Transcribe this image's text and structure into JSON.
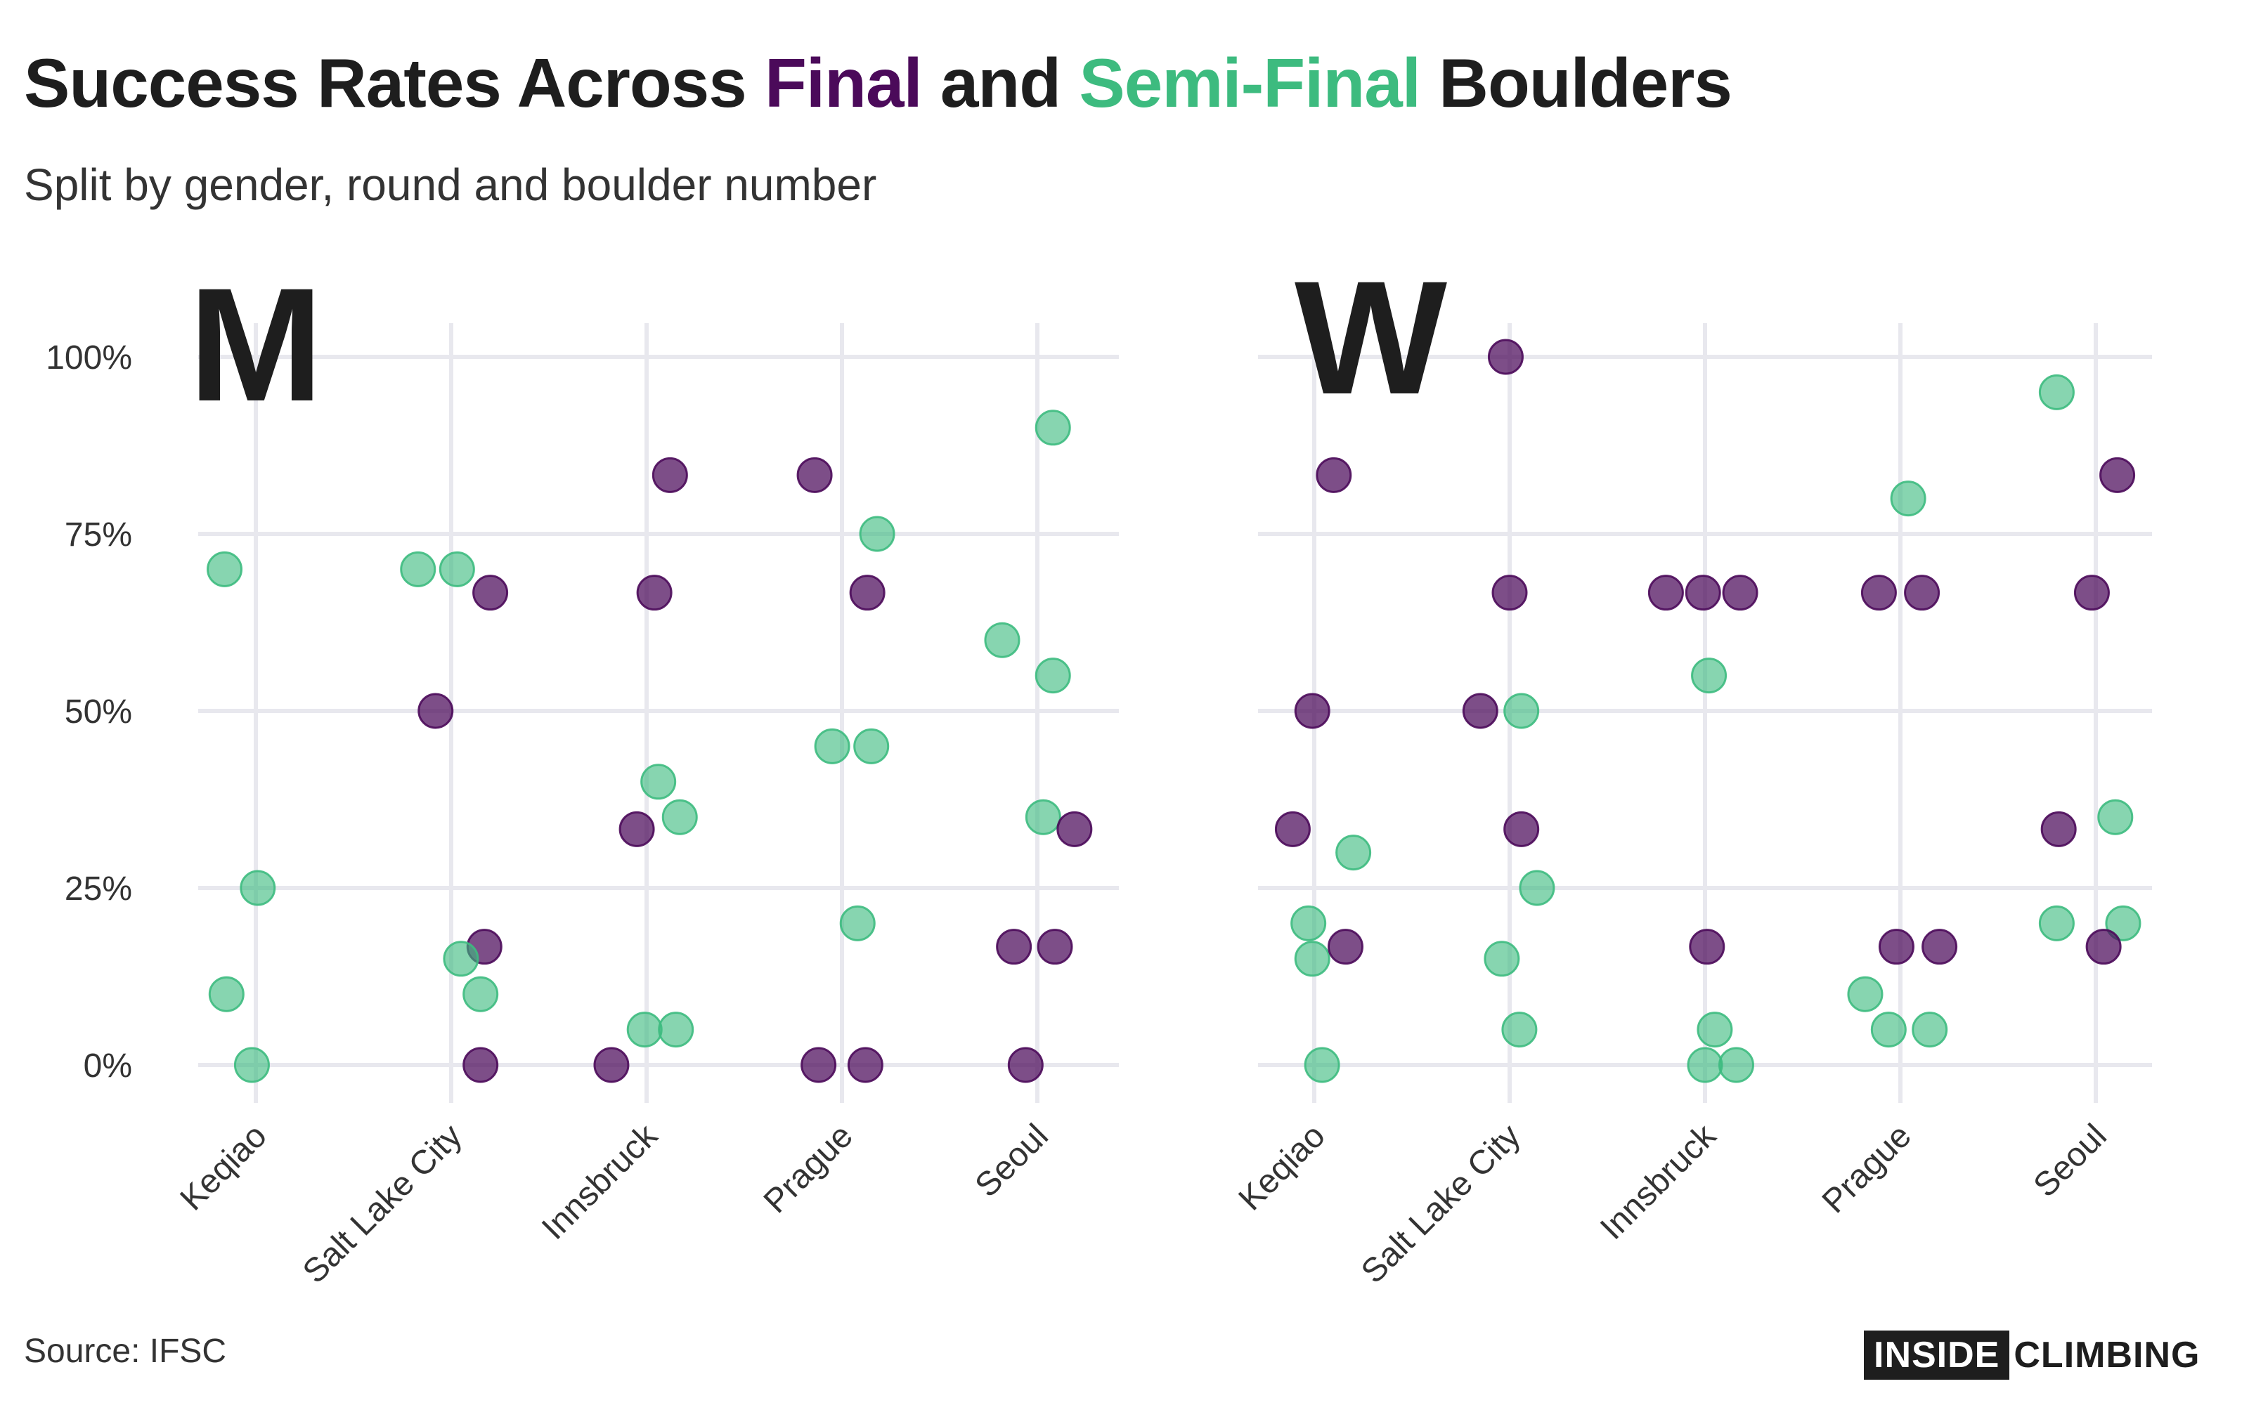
{
  "header": {
    "title_prefix": "Success Rates Across ",
    "title_final": "Final",
    "title_and": " and ",
    "title_semifinal": "Semi-Final",
    "title_suffix": " Boulders",
    "subtitle": "Split by gender, round and boulder number"
  },
  "footer": {
    "source": "Source: IFSC",
    "brand_box": "INSIDE",
    "brand_rest": "CLIMBING"
  },
  "colors": {
    "final": "#4b0a5a",
    "semi_final": "#3dbb7f",
    "grid": "#e8e8ee",
    "text": "#1e1e1e"
  },
  "chart_data": {
    "type": "scatter",
    "categories": [
      "Keqiao",
      "Salt Lake City",
      "Innsbruck",
      "Prague",
      "Seoul"
    ],
    "ylim": [
      0,
      100
    ],
    "yticks": [
      "0%",
      "25%",
      "50%",
      "75%",
      "100%"
    ],
    "grid": true,
    "series_names": [
      "Final",
      "Semi-Final"
    ],
    "panels": [
      {
        "label": "M",
        "points": [
          {
            "cat": "Keqiao",
            "jitter": -0.16,
            "y": 70,
            "series": "Semi-Final"
          },
          {
            "cat": "Keqiao",
            "jitter": 0.01,
            "y": 25,
            "series": "Semi-Final"
          },
          {
            "cat": "Keqiao",
            "jitter": -0.15,
            "y": 10,
            "series": "Semi-Final"
          },
          {
            "cat": "Keqiao",
            "jitter": -0.02,
            "y": 0,
            "series": "Semi-Final"
          },
          {
            "cat": "Salt Lake City",
            "jitter": -0.17,
            "y": 70,
            "series": "Semi-Final"
          },
          {
            "cat": "Salt Lake City",
            "jitter": 0.03,
            "y": 70,
            "series": "Semi-Final"
          },
          {
            "cat": "Salt Lake City",
            "jitter": 0.2,
            "y": 66.7,
            "series": "Final"
          },
          {
            "cat": "Salt Lake City",
            "jitter": -0.08,
            "y": 50,
            "series": "Final"
          },
          {
            "cat": "Salt Lake City",
            "jitter": 0.17,
            "y": 16.7,
            "series": "Final"
          },
          {
            "cat": "Salt Lake City",
            "jitter": 0.05,
            "y": 15,
            "series": "Semi-Final"
          },
          {
            "cat": "Salt Lake City",
            "jitter": 0.15,
            "y": 10,
            "series": "Semi-Final"
          },
          {
            "cat": "Salt Lake City",
            "jitter": 0.15,
            "y": 0,
            "series": "Final"
          },
          {
            "cat": "Innsbruck",
            "jitter": 0.12,
            "y": 83.3,
            "series": "Final"
          },
          {
            "cat": "Innsbruck",
            "jitter": 0.04,
            "y": 66.7,
            "series": "Final"
          },
          {
            "cat": "Innsbruck",
            "jitter": 0.06,
            "y": 40,
            "series": "Semi-Final"
          },
          {
            "cat": "Innsbruck",
            "jitter": 0.17,
            "y": 35,
            "series": "Semi-Final"
          },
          {
            "cat": "Innsbruck",
            "jitter": -0.05,
            "y": 33.3,
            "series": "Final"
          },
          {
            "cat": "Innsbruck",
            "jitter": -0.01,
            "y": 5,
            "series": "Semi-Final"
          },
          {
            "cat": "Innsbruck",
            "jitter": 0.15,
            "y": 5,
            "series": "Semi-Final"
          },
          {
            "cat": "Innsbruck",
            "jitter": -0.18,
            "y": 0,
            "series": "Final"
          },
          {
            "cat": "Prague",
            "jitter": -0.14,
            "y": 83.3,
            "series": "Final"
          },
          {
            "cat": "Prague",
            "jitter": 0.18,
            "y": 75,
            "series": "Semi-Final"
          },
          {
            "cat": "Prague",
            "jitter": 0.13,
            "y": 66.7,
            "series": "Final"
          },
          {
            "cat": "Prague",
            "jitter": -0.05,
            "y": 45,
            "series": "Semi-Final"
          },
          {
            "cat": "Prague",
            "jitter": 0.15,
            "y": 45,
            "series": "Semi-Final"
          },
          {
            "cat": "Prague",
            "jitter": 0.08,
            "y": 20,
            "series": "Semi-Final"
          },
          {
            "cat": "Prague",
            "jitter": -0.12,
            "y": 0,
            "series": "Final"
          },
          {
            "cat": "Prague",
            "jitter": 0.12,
            "y": 0,
            "series": "Final"
          },
          {
            "cat": "Seoul",
            "jitter": 0.08,
            "y": 90,
            "series": "Semi-Final"
          },
          {
            "cat": "Seoul",
            "jitter": -0.18,
            "y": 60,
            "series": "Semi-Final"
          },
          {
            "cat": "Seoul",
            "jitter": 0.08,
            "y": 55,
            "series": "Semi-Final"
          },
          {
            "cat": "Seoul",
            "jitter": 0.03,
            "y": 35,
            "series": "Semi-Final"
          },
          {
            "cat": "Seoul",
            "jitter": 0.19,
            "y": 33.3,
            "series": "Final"
          },
          {
            "cat": "Seoul",
            "jitter": -0.12,
            "y": 16.7,
            "series": "Final"
          },
          {
            "cat": "Seoul",
            "jitter": 0.09,
            "y": 16.7,
            "series": "Final"
          },
          {
            "cat": "Seoul",
            "jitter": -0.06,
            "y": 0,
            "series": "Final"
          }
        ]
      },
      {
        "label": "W",
        "points": [
          {
            "cat": "Keqiao",
            "jitter": 0.1,
            "y": 83.3,
            "series": "Final"
          },
          {
            "cat": "Keqiao",
            "jitter": -0.01,
            "y": 50,
            "series": "Final"
          },
          {
            "cat": "Keqiao",
            "jitter": -0.11,
            "y": 33.3,
            "series": "Final"
          },
          {
            "cat": "Keqiao",
            "jitter": 0.2,
            "y": 30,
            "series": "Semi-Final"
          },
          {
            "cat": "Keqiao",
            "jitter": -0.03,
            "y": 20,
            "series": "Semi-Final"
          },
          {
            "cat": "Keqiao",
            "jitter": -0.01,
            "y": 15,
            "series": "Semi-Final"
          },
          {
            "cat": "Keqiao",
            "jitter": 0.16,
            "y": 16.7,
            "series": "Final"
          },
          {
            "cat": "Keqiao",
            "jitter": 0.04,
            "y": 0,
            "series": "Semi-Final"
          },
          {
            "cat": "Salt Lake City",
            "jitter": -0.02,
            "y": 100,
            "series": "Final"
          },
          {
            "cat": "Salt Lake City",
            "jitter": 0.0,
            "y": 66.7,
            "series": "Final"
          },
          {
            "cat": "Salt Lake City",
            "jitter": -0.15,
            "y": 50,
            "series": "Final"
          },
          {
            "cat": "Salt Lake City",
            "jitter": 0.06,
            "y": 50,
            "series": "Semi-Final"
          },
          {
            "cat": "Salt Lake City",
            "jitter": 0.06,
            "y": 33.3,
            "series": "Final"
          },
          {
            "cat": "Salt Lake City",
            "jitter": 0.14,
            "y": 25,
            "series": "Semi-Final"
          },
          {
            "cat": "Salt Lake City",
            "jitter": -0.04,
            "y": 15,
            "series": "Semi-Final"
          },
          {
            "cat": "Salt Lake City",
            "jitter": 0.05,
            "y": 5,
            "series": "Semi-Final"
          },
          {
            "cat": "Innsbruck",
            "jitter": -0.2,
            "y": 66.7,
            "series": "Final"
          },
          {
            "cat": "Innsbruck",
            "jitter": -0.01,
            "y": 66.7,
            "series": "Final"
          },
          {
            "cat": "Innsbruck",
            "jitter": 0.18,
            "y": 66.7,
            "series": "Final"
          },
          {
            "cat": "Innsbruck",
            "jitter": 0.02,
            "y": 55,
            "series": "Semi-Final"
          },
          {
            "cat": "Innsbruck",
            "jitter": 0.01,
            "y": 16.7,
            "series": "Final"
          },
          {
            "cat": "Innsbruck",
            "jitter": 0.05,
            "y": 5,
            "series": "Semi-Final"
          },
          {
            "cat": "Innsbruck",
            "jitter": 0.0,
            "y": 0,
            "series": "Semi-Final"
          },
          {
            "cat": "Innsbruck",
            "jitter": 0.16,
            "y": 0,
            "series": "Semi-Final"
          },
          {
            "cat": "Prague",
            "jitter": 0.04,
            "y": 80,
            "series": "Semi-Final"
          },
          {
            "cat": "Prague",
            "jitter": -0.11,
            "y": 66.7,
            "series": "Final"
          },
          {
            "cat": "Prague",
            "jitter": 0.11,
            "y": 66.7,
            "series": "Final"
          },
          {
            "cat": "Prague",
            "jitter": -0.02,
            "y": 16.7,
            "series": "Final"
          },
          {
            "cat": "Prague",
            "jitter": 0.2,
            "y": 16.7,
            "series": "Final"
          },
          {
            "cat": "Prague",
            "jitter": -0.18,
            "y": 10,
            "series": "Semi-Final"
          },
          {
            "cat": "Prague",
            "jitter": -0.06,
            "y": 5,
            "series": "Semi-Final"
          },
          {
            "cat": "Prague",
            "jitter": 0.15,
            "y": 5,
            "series": "Semi-Final"
          },
          {
            "cat": "Seoul",
            "jitter": -0.2,
            "y": 95,
            "series": "Semi-Final"
          },
          {
            "cat": "Seoul",
            "jitter": 0.11,
            "y": 83.3,
            "series": "Final"
          },
          {
            "cat": "Seoul",
            "jitter": -0.02,
            "y": 66.7,
            "series": "Final"
          },
          {
            "cat": "Seoul",
            "jitter": -0.19,
            "y": 33.3,
            "series": "Final"
          },
          {
            "cat": "Seoul",
            "jitter": 0.1,
            "y": 35,
            "series": "Semi-Final"
          },
          {
            "cat": "Seoul",
            "jitter": -0.2,
            "y": 20,
            "series": "Semi-Final"
          },
          {
            "cat": "Seoul",
            "jitter": 0.14,
            "y": 20,
            "series": "Semi-Final"
          },
          {
            "cat": "Seoul",
            "jitter": 0.04,
            "y": 16.7,
            "series": "Final"
          }
        ]
      }
    ]
  }
}
